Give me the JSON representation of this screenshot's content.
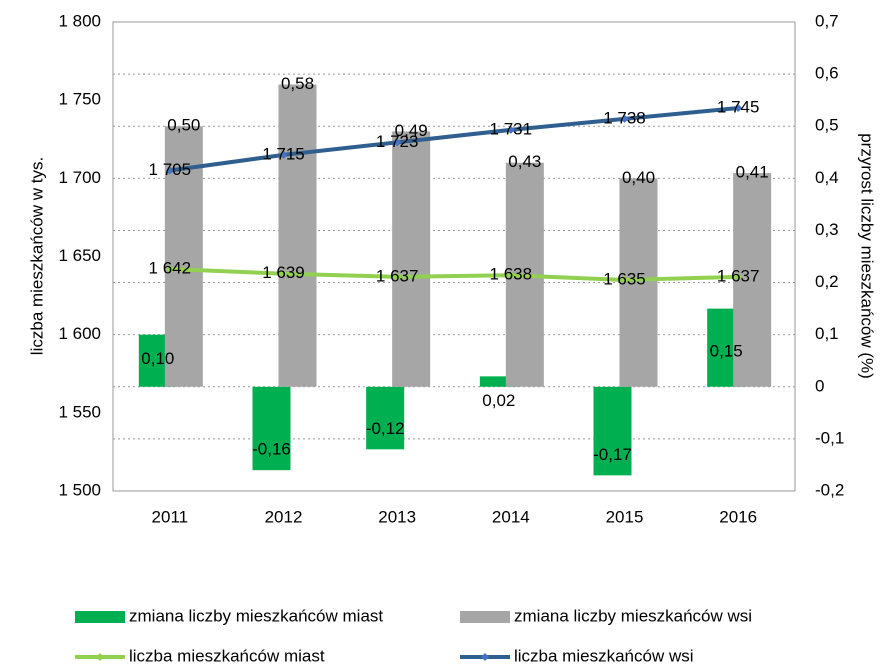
{
  "chart_data": {
    "type": "bar-line",
    "categories": [
      "2011",
      "2012",
      "2013",
      "2014",
      "2015",
      "2016"
    ],
    "y_label": "liczba mieszkańców w tys.",
    "y2_label": "przyrost liczby mieszkańców (%)",
    "ylim": [
      1500,
      1800
    ],
    "yticks": [
      {
        "value": 1500,
        "label": "1 500"
      },
      {
        "value": 1550,
        "label": "1 550"
      },
      {
        "value": 1600,
        "label": "1 600"
      },
      {
        "value": 1650,
        "label": "1 650"
      },
      {
        "value": 1700,
        "label": "1 700"
      },
      {
        "value": 1750,
        "label": "1 750"
      },
      {
        "value": 1800,
        "label": "1 800"
      }
    ],
    "y2lim": [
      -0.2,
      0.7
    ],
    "y2ticks": [
      {
        "value": -0.2,
        "label": "-0,2"
      },
      {
        "value": -0.1,
        "label": "-0,1"
      },
      0,
      {
        "value": 0.1,
        "label": "0,1"
      },
      {
        "value": 0.2,
        "label": "0,2"
      },
      {
        "value": 0.3,
        "label": "0,3"
      },
      {
        "value": 0.4,
        "label": "0,4"
      },
      {
        "value": 0.5,
        "label": "0,5"
      },
      {
        "value": 0.6,
        "label": "0,6"
      },
      {
        "value": 0.7,
        "label": "0,7"
      }
    ],
    "grid": true,
    "legend": "bottom",
    "series": [
      {
        "name": "zmiana liczby mieszkańców miast",
        "kind": "bar",
        "axis": "y2",
        "color": "#00b050",
        "values": [
          0.1,
          -0.16,
          -0.12,
          0.02,
          -0.17,
          0.15
        ],
        "value_labels": [
          "0,10",
          "-0,16",
          "-0,12",
          "0,02",
          "-0,17",
          "0,15"
        ]
      },
      {
        "name": "zmiana liczby mieszkańców wsi",
        "kind": "bar",
        "axis": "y2",
        "color": "#a6a6a6",
        "values": [
          0.5,
          0.58,
          0.49,
          0.43,
          0.4,
          0.41
        ],
        "value_labels": [
          "0,50",
          "0,58",
          "0,49",
          "0,43",
          "0,40",
          "0,41"
        ]
      },
      {
        "name": "liczba mieszkańców miast",
        "kind": "line",
        "color": "#92d050",
        "values": [
          1642,
          1639,
          1637,
          1638,
          1635,
          1637
        ],
        "value_labels": [
          "1 642",
          "1 639",
          "1 637",
          "1 638",
          "1 635",
          "1 637"
        ]
      },
      {
        "name": "liczba mieszkańców wsi",
        "kind": "line",
        "color": "#2f5f8f",
        "marker_color": "#4472c4",
        "values": [
          1705,
          1715,
          1723,
          1731,
          1738,
          1745
        ],
        "value_labels": [
          "1 705",
          "1 715",
          "1 723",
          "1 731",
          "1 738",
          "1 745"
        ]
      }
    ]
  }
}
